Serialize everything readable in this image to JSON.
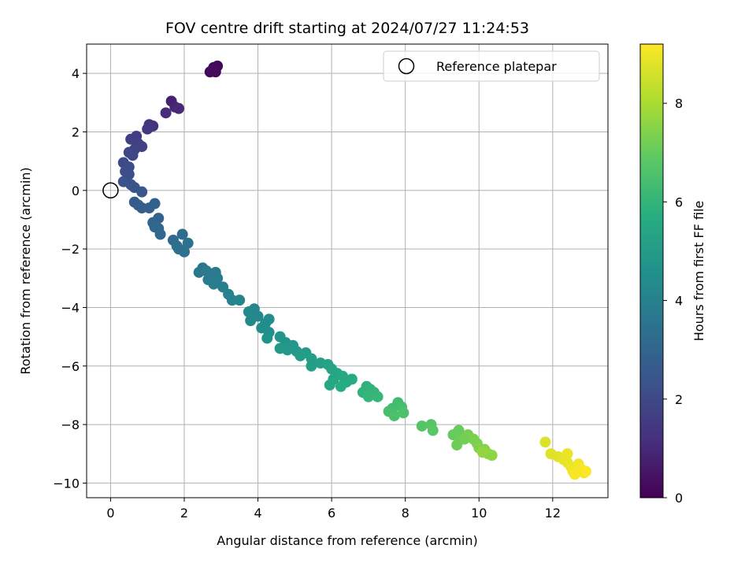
{
  "chart_data": {
    "type": "scatter",
    "title": "FOV centre drift starting at 2024/07/27 11:24:53",
    "xlabel": "Angular distance from reference (arcmin)",
    "ylabel": "Rotation from reference (arcmin)",
    "xlim": [
      -0.65,
      13.5
    ],
    "ylim": [
      -10.5,
      5.0
    ],
    "xticks": [
      0,
      2,
      4,
      6,
      8,
      10,
      12
    ],
    "yticks": [
      -10,
      -8,
      -6,
      -4,
      -2,
      0,
      2,
      4
    ],
    "xtick_labels": [
      "0",
      "2",
      "4",
      "6",
      "8",
      "10",
      "12"
    ],
    "ytick_labels": [
      "−10",
      "−8",
      "−6",
      "−4",
      "−2",
      "0",
      "2",
      "4"
    ],
    "grid": true,
    "legend": {
      "placement": "top-right",
      "label": "Reference platepar"
    },
    "reference_point": [
      0,
      0
    ],
    "colorbar": {
      "label": "Hours from first FF file",
      "range": [
        0,
        9.2
      ],
      "ticks": [
        0,
        2,
        4,
        6,
        8
      ],
      "tick_labels": [
        "0",
        "2",
        "4",
        "6",
        "8"
      ],
      "colormap": "viridis"
    },
    "points": [
      [
        2.7,
        4.05,
        0.05
      ],
      [
        2.8,
        4.2,
        0.1
      ],
      [
        2.9,
        4.25,
        0.15
      ],
      [
        2.85,
        4.05,
        0.2
      ],
      [
        2.75,
        4.1,
        0.25
      ],
      [
        1.65,
        3.05,
        0.8
      ],
      [
        1.75,
        2.85,
        0.9
      ],
      [
        1.85,
        2.8,
        1.0
      ],
      [
        1.5,
        2.65,
        1.1
      ],
      [
        1.05,
        2.25,
        1.3
      ],
      [
        1.15,
        2.2,
        1.35
      ],
      [
        1.0,
        2.1,
        1.4
      ],
      [
        0.7,
        1.85,
        1.6
      ],
      [
        0.55,
        1.75,
        1.65
      ],
      [
        0.75,
        1.6,
        1.7
      ],
      [
        0.85,
        1.5,
        1.75
      ],
      [
        0.65,
        1.4,
        1.8
      ],
      [
        0.6,
        1.2,
        1.9
      ],
      [
        0.5,
        1.3,
        1.95
      ],
      [
        0.35,
        0.95,
        2.05
      ],
      [
        0.5,
        0.8,
        2.1
      ],
      [
        0.4,
        0.65,
        2.15
      ],
      [
        0.5,
        0.55,
        2.2
      ],
      [
        0.35,
        0.3,
        2.3
      ],
      [
        0.55,
        0.2,
        2.35
      ],
      [
        0.65,
        0.1,
        2.4
      ],
      [
        0.85,
        -0.05,
        2.5
      ],
      [
        0.65,
        -0.4,
        2.6
      ],
      [
        0.75,
        -0.5,
        2.65
      ],
      [
        0.85,
        -0.6,
        2.7
      ],
      [
        1.05,
        -0.6,
        2.75
      ],
      [
        1.2,
        -0.45,
        2.8
      ],
      [
        1.3,
        -0.95,
        2.9
      ],
      [
        1.15,
        -1.1,
        2.95
      ],
      [
        1.2,
        -1.25,
        3.0
      ],
      [
        1.3,
        -1.3,
        3.05
      ],
      [
        1.35,
        -1.5,
        3.1
      ],
      [
        1.7,
        -1.7,
        3.2
      ],
      [
        1.95,
        -1.5,
        3.25
      ],
      [
        1.8,
        -1.9,
        3.3
      ],
      [
        1.85,
        -2.0,
        3.35
      ],
      [
        2.0,
        -2.1,
        3.4
      ],
      [
        2.1,
        -1.8,
        3.45
      ],
      [
        2.5,
        -2.65,
        3.6
      ],
      [
        2.4,
        -2.8,
        3.65
      ],
      [
        2.6,
        -2.75,
        3.7
      ],
      [
        2.85,
        -2.8,
        3.75
      ],
      [
        2.65,
        -3.05,
        3.8
      ],
      [
        2.9,
        -3.0,
        3.85
      ],
      [
        2.8,
        -3.2,
        3.9
      ],
      [
        3.05,
        -3.3,
        3.95
      ],
      [
        3.2,
        -3.55,
        4.0
      ],
      [
        3.3,
        -3.75,
        4.05
      ],
      [
        3.5,
        -3.75,
        4.1
      ],
      [
        3.9,
        -4.05,
        4.2
      ],
      [
        3.75,
        -4.15,
        4.25
      ],
      [
        4.0,
        -4.3,
        4.3
      ],
      [
        3.8,
        -4.45,
        4.35
      ],
      [
        4.2,
        -4.55,
        4.4
      ],
      [
        4.3,
        -4.4,
        4.45
      ],
      [
        4.1,
        -4.7,
        4.5
      ],
      [
        4.3,
        -4.85,
        4.55
      ],
      [
        4.25,
        -5.05,
        4.6
      ],
      [
        4.6,
        -5.0,
        4.7
      ],
      [
        4.75,
        -5.2,
        4.75
      ],
      [
        4.95,
        -5.3,
        4.8
      ],
      [
        4.8,
        -5.45,
        4.85
      ],
      [
        5.05,
        -5.5,
        4.9
      ],
      [
        4.6,
        -5.4,
        4.95
      ],
      [
        5.3,
        -5.55,
        5.0
      ],
      [
        5.15,
        -5.65,
        5.05
      ],
      [
        5.45,
        -5.75,
        5.1
      ],
      [
        5.45,
        -6.0,
        5.15
      ],
      [
        5.7,
        -5.9,
        5.2
      ],
      [
        5.9,
        -5.95,
        5.3
      ],
      [
        6.0,
        -6.1,
        5.35
      ],
      [
        6.15,
        -6.25,
        5.4
      ],
      [
        6.05,
        -6.45,
        5.45
      ],
      [
        5.95,
        -6.65,
        5.5
      ],
      [
        6.3,
        -6.35,
        5.55
      ],
      [
        6.4,
        -6.55,
        5.6
      ],
      [
        6.55,
        -6.45,
        5.65
      ],
      [
        6.25,
        -6.7,
        5.7
      ],
      [
        6.95,
        -6.7,
        5.85
      ],
      [
        6.85,
        -6.9,
        5.9
      ],
      [
        7.05,
        -6.8,
        5.95
      ],
      [
        7.15,
        -6.9,
        6.0
      ],
      [
        7.0,
        -7.05,
        6.05
      ],
      [
        7.25,
        -7.05,
        6.1
      ],
      [
        7.8,
        -7.25,
        6.3
      ],
      [
        7.65,
        -7.45,
        6.35
      ],
      [
        7.9,
        -7.4,
        6.4
      ],
      [
        7.55,
        -7.55,
        6.45
      ],
      [
        7.7,
        -7.7,
        6.5
      ],
      [
        7.95,
        -7.6,
        6.55
      ],
      [
        8.45,
        -8.05,
        6.7
      ],
      [
        8.7,
        -8.0,
        6.75
      ],
      [
        8.75,
        -8.2,
        6.8
      ],
      [
        9.3,
        -8.35,
        7.0
      ],
      [
        9.45,
        -8.2,
        7.05
      ],
      [
        9.5,
        -8.45,
        7.1
      ],
      [
        9.4,
        -8.7,
        7.15
      ],
      [
        9.6,
        -8.5,
        7.2
      ],
      [
        9.7,
        -8.35,
        7.25
      ],
      [
        9.85,
        -8.5,
        7.3
      ],
      [
        9.95,
        -8.65,
        7.35
      ],
      [
        10.0,
        -8.8,
        7.4
      ],
      [
        10.15,
        -8.85,
        7.45
      ],
      [
        10.25,
        -9.0,
        7.55
      ],
      [
        10.35,
        -9.05,
        7.6
      ],
      [
        10.1,
        -8.95,
        7.65
      ],
      [
        11.8,
        -8.6,
        8.7
      ],
      [
        11.95,
        -9.0,
        8.75
      ],
      [
        12.15,
        -9.1,
        8.8
      ],
      [
        12.3,
        -9.2,
        8.85
      ],
      [
        12.4,
        -9.3,
        8.9
      ],
      [
        12.4,
        -9.0,
        8.92
      ],
      [
        12.5,
        -9.45,
        8.95
      ],
      [
        12.55,
        -9.6,
        9.0
      ],
      [
        12.7,
        -9.35,
        9.02
      ],
      [
        12.8,
        -9.55,
        9.05
      ],
      [
        12.85,
        -9.65,
        9.08
      ],
      [
        12.6,
        -9.7,
        9.1
      ],
      [
        12.75,
        -9.5,
        9.12
      ],
      [
        12.9,
        -9.6,
        9.15
      ]
    ]
  }
}
